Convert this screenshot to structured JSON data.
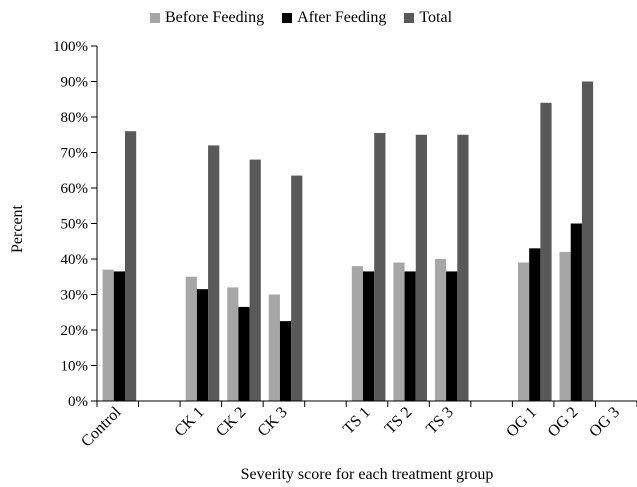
{
  "chart_data": {
    "type": "bar",
    "title": "",
    "xlabel": "Severity score for each treatment group",
    "ylabel": "Percent",
    "ylim": [
      0,
      100
    ],
    "y_ticks": [
      "0%",
      "10%",
      "20%",
      "30%",
      "40%",
      "50%",
      "60%",
      "70%",
      "80%",
      "90%",
      "100%"
    ],
    "grid": false,
    "legend_position": "top",
    "categories": [
      "Control",
      "",
      "CK 1",
      "CK 2",
      "CK 3",
      "",
      "TS 1",
      "TS 2",
      "TS 3",
      "",
      "OG 1",
      "OG 2",
      "OG 3"
    ],
    "series": [
      {
        "name": "Before Feeding",
        "color": "#a6a6a6",
        "values": [
          37,
          null,
          35,
          32,
          30,
          null,
          38,
          39,
          40,
          null,
          39,
          42,
          null
        ]
      },
      {
        "name": "After Feeding",
        "color": "#000000",
        "values": [
          36.5,
          null,
          31.5,
          26.5,
          22.5,
          null,
          36.5,
          36.5,
          36.5,
          null,
          43,
          50,
          null
        ]
      },
      {
        "name": "Total",
        "color": "#595959",
        "values": [
          76,
          null,
          72,
          68,
          63.5,
          null,
          75.5,
          75,
          75,
          null,
          84,
          90,
          null
        ]
      }
    ]
  }
}
